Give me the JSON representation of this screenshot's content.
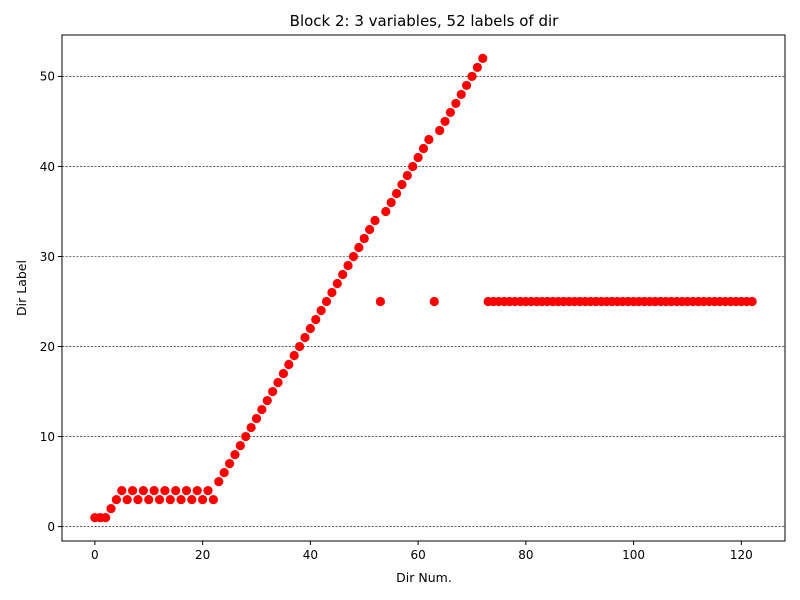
{
  "chart_data": {
    "type": "scatter",
    "title": "Block 2: 3 variables, 52 labels of dir",
    "xlabel": "Dir Num.",
    "ylabel": "Dir Label",
    "xlim": [
      -6.1,
      128.1
    ],
    "ylim": [
      -1.6,
      54.6
    ],
    "xticks": [
      0,
      20,
      40,
      60,
      80,
      100,
      120
    ],
    "yticks": [
      0,
      10,
      20,
      30,
      40,
      50
    ],
    "grid": "horizontal-dashed",
    "marker_color": "#ff0000",
    "series": [
      {
        "x": [
          0,
          1,
          2,
          3,
          4,
          5,
          6,
          7,
          8,
          9,
          10,
          11,
          12,
          13,
          14,
          15,
          16,
          17,
          18,
          19,
          20,
          21,
          22,
          23,
          24,
          25,
          26,
          27,
          28,
          29,
          30,
          31,
          32,
          33,
          34,
          35,
          36,
          37,
          38,
          39,
          40,
          41,
          42,
          43,
          44,
          45,
          46,
          47,
          48,
          49,
          50,
          51,
          52,
          53,
          54,
          55,
          56,
          57,
          58,
          59,
          60,
          61,
          62,
          63,
          64,
          65,
          66,
          67,
          68,
          69,
          70,
          71,
          72,
          73,
          74,
          75,
          76,
          77,
          78,
          79,
          80,
          81,
          82,
          83,
          84,
          85,
          86,
          87,
          88,
          89,
          90,
          91,
          92,
          93,
          94,
          95,
          96,
          97,
          98,
          99,
          100,
          101,
          102,
          103,
          104,
          105,
          106,
          107,
          108,
          109,
          110,
          111,
          112,
          113,
          114,
          115,
          116,
          117,
          118,
          119,
          120,
          121,
          122
        ],
        "y": [
          1,
          1,
          1,
          2,
          3,
          4,
          3,
          4,
          3,
          4,
          3,
          4,
          3,
          4,
          3,
          4,
          3,
          4,
          3,
          4,
          3,
          4,
          3,
          5,
          6,
          7,
          8,
          9,
          10,
          11,
          12,
          13,
          14,
          15,
          16,
          17,
          18,
          19,
          20,
          21,
          22,
          23,
          24,
          25,
          26,
          27,
          28,
          29,
          30,
          31,
          32,
          33,
          34,
          25,
          35,
          36,
          37,
          38,
          39,
          40,
          41,
          42,
          43,
          25,
          44,
          45,
          46,
          47,
          48,
          49,
          50,
          51,
          52,
          25,
          25,
          25,
          25,
          25,
          25,
          25,
          25,
          25,
          25,
          25,
          25,
          25,
          25,
          25,
          25,
          25,
          25,
          25,
          25,
          25,
          25,
          25,
          25,
          25,
          25,
          25,
          25,
          25,
          25,
          25,
          25,
          25,
          25,
          25,
          25,
          25,
          25,
          25,
          25,
          25,
          25,
          25,
          25,
          25,
          25,
          25,
          25,
          25,
          25
        ]
      }
    ]
  }
}
